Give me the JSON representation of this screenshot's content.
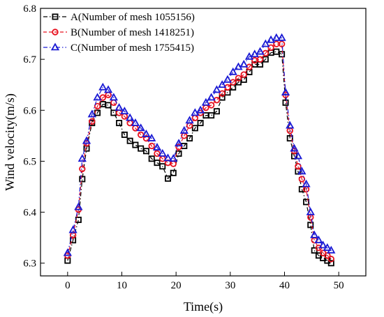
{
  "chart_data": {
    "type": "line",
    "xlabel": "Time(s)",
    "ylabel": "Wind velocity(m/s)",
    "xlim": [
      -5,
      55
    ],
    "ylim": [
      6.275,
      6.8
    ],
    "xticks": [
      "0",
      "10",
      "20",
      "30",
      "40",
      "50"
    ],
    "yticks": [
      "6.3",
      "6.4",
      "6.5",
      "6.6",
      "6.7",
      "6.8"
    ],
    "legend_position": "top-left",
    "grid": false,
    "series": [
      {
        "name": "A(Number of mesh 1055156)",
        "color": "#000000",
        "marker": "square",
        "x": [
          0,
          1,
          2,
          2.7,
          3.5,
          4.5,
          5.5,
          6.5,
          7.5,
          8.5,
          9.5,
          10.5,
          11.5,
          12.5,
          13.5,
          14.5,
          15.5,
          16.5,
          17.5,
          18.5,
          19.5,
          20.5,
          21.5,
          22.5,
          23.5,
          24.5,
          25.5,
          26.5,
          27.5,
          28.5,
          29.5,
          30.5,
          31.5,
          32.5,
          33.5,
          34.5,
          35.5,
          36.5,
          37.5,
          38.5,
          39.5,
          40.2,
          41,
          41.8,
          42.5,
          43.2,
          44,
          44.8,
          45.5,
          46.3,
          47.1,
          47.9,
          48.6
        ],
        "y": [
          6.305,
          6.345,
          6.385,
          6.465,
          6.525,
          6.575,
          6.595,
          6.612,
          6.61,
          6.595,
          6.575,
          6.552,
          6.54,
          6.532,
          6.525,
          6.52,
          6.505,
          6.497,
          6.49,
          6.466,
          6.477,
          6.515,
          6.53,
          6.545,
          6.565,
          6.575,
          6.59,
          6.59,
          6.598,
          6.625,
          6.635,
          6.645,
          6.655,
          6.66,
          6.675,
          6.69,
          6.69,
          6.7,
          6.713,
          6.715,
          6.71,
          6.615,
          6.545,
          6.51,
          6.48,
          6.445,
          6.42,
          6.375,
          6.325,
          6.315,
          6.31,
          6.305,
          6.3
        ]
      },
      {
        "name": "B(Number of mesh 1418251)",
        "color": "#e8101e",
        "marker": "circle",
        "x": [
          0,
          1,
          2,
          2.7,
          3.5,
          4.5,
          5.5,
          6.5,
          7.5,
          8.5,
          9.5,
          10.5,
          11.5,
          12.5,
          13.5,
          14.5,
          15.5,
          16.5,
          17.5,
          18.5,
          19.5,
          20.5,
          21.5,
          22.5,
          23.5,
          24.5,
          25.5,
          26.5,
          27.5,
          28.5,
          29.5,
          30.5,
          31.5,
          32.5,
          33.5,
          34.5,
          35.5,
          36.5,
          37.5,
          38.5,
          39.5,
          40.2,
          41,
          41.8,
          42.5,
          43.2,
          44,
          44.8,
          45.5,
          46.3,
          47.1,
          47.9,
          48.6
        ],
        "y": [
          6.315,
          6.355,
          6.405,
          6.485,
          6.535,
          6.578,
          6.608,
          6.625,
          6.63,
          6.615,
          6.595,
          6.588,
          6.575,
          6.565,
          6.552,
          6.545,
          6.53,
          6.515,
          6.505,
          6.497,
          6.495,
          6.528,
          6.55,
          6.57,
          6.585,
          6.595,
          6.605,
          6.61,
          6.62,
          6.633,
          6.645,
          6.655,
          6.663,
          6.67,
          6.685,
          6.698,
          6.7,
          6.712,
          6.723,
          6.73,
          6.73,
          6.63,
          6.56,
          6.52,
          6.49,
          6.465,
          6.445,
          6.39,
          6.345,
          6.33,
          6.32,
          6.315,
          6.308
        ]
      },
      {
        "name": "C(Number of mesh 1755415)",
        "color": "#1a1ad4",
        "marker": "triangle",
        "x": [
          0,
          1,
          2,
          2.7,
          3.5,
          4.5,
          5.5,
          6.5,
          7.5,
          8.5,
          9.5,
          10.5,
          11.5,
          12.5,
          13.5,
          14.5,
          15.5,
          16.5,
          17.5,
          18.5,
          19.5,
          20.5,
          21.5,
          22.5,
          23.5,
          24.5,
          25.5,
          26.5,
          27.5,
          28.5,
          29.5,
          30.5,
          31.5,
          32.5,
          33.5,
          34.5,
          35.5,
          36.5,
          37.5,
          38.5,
          39.5,
          40.2,
          41,
          41.8,
          42.5,
          43.2,
          44,
          44.8,
          45.5,
          46.3,
          47.1,
          47.9,
          48.6
        ],
        "y": [
          6.32,
          6.365,
          6.41,
          6.505,
          6.54,
          6.592,
          6.625,
          6.645,
          6.64,
          6.625,
          6.605,
          6.598,
          6.585,
          6.575,
          6.565,
          6.553,
          6.545,
          6.527,
          6.515,
          6.506,
          6.505,
          6.535,
          6.56,
          6.58,
          6.595,
          6.6,
          6.615,
          6.625,
          6.64,
          6.65,
          6.66,
          6.675,
          6.685,
          6.69,
          6.705,
          6.71,
          6.715,
          6.73,
          6.738,
          6.742,
          6.742,
          6.635,
          6.57,
          6.525,
          6.51,
          6.48,
          6.455,
          6.4,
          6.355,
          6.345,
          6.335,
          6.33,
          6.325
        ]
      }
    ]
  }
}
